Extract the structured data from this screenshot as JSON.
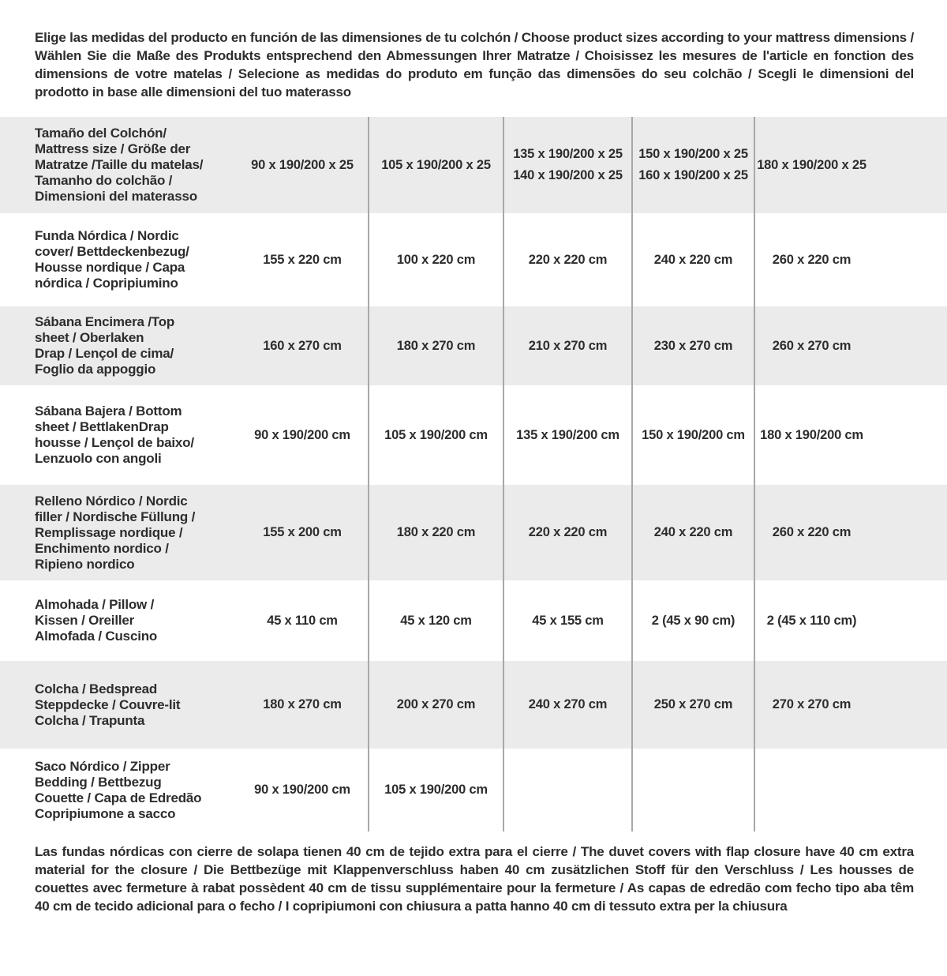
{
  "style": {
    "shaded_row_color": "#ebebeb",
    "divider_color": "#a8a8a8",
    "text_color": "#2d2d2d",
    "background_color": "#ffffff"
  },
  "intro": {
    "text": "Elige las medidas del producto en función de las dimensiones de tu colchón / Choose product sizes according to your mattress dimensions / Wählen Sie die Maße des Produkts entsprechend den Abmessungen Ihrer Matratze / Choisissez les mesures de l'article en fonction des dimensions de votre matelas / Selecione as medidas do produto em função das dimensões do seu colchão / Scegli le dimensioni del prodotto in base alle dimensioni del tuo materasso"
  },
  "table": {
    "rows": [
      {
        "label": "Tamaño del Colchón/\nMattress size / Größe der\nMatratze /Taille du matelas/\nTamanho do colchão /\nDimensioni del materasso",
        "values": [
          "90 x 190/200 x 25",
          "105 x 190/200 x 25",
          "135 x 190/200 x 25\n140 x 190/200 x 25",
          "150 x 190/200 x 25\n160 x 190/200 x 25",
          "180 x 190/200 x 25"
        ]
      },
      {
        "label": "Funda Nórdica /  Nordic\ncover/ Bettdeckenbezug/\nHousse nordique  / Capa\nnórdica / Copripiumino",
        "values": [
          "155 x 220 cm",
          "100 x 220 cm",
          "220 x 220 cm",
          "240 x 220 cm",
          "260 x 220 cm"
        ]
      },
      {
        "label": "Sábana Encimera /Top\nsheet / Oberlaken\nDrap / Lençol de cima/\nFoglio da appoggio",
        "values": [
          "160 x 270 cm",
          "180 x 270 cm",
          "210 x 270 cm",
          "230 x 270 cm",
          "260 x 270 cm"
        ]
      },
      {
        "label": "Sábana Bajera / Bottom\nsheet / BettlakenDrap\nhousse / Lençol de baixo/\nLenzuolo con angoli",
        "values": [
          "90 x 190/200 cm",
          "105 x 190/200 cm",
          "135 x 190/200 cm",
          "150 x 190/200 cm",
          "180 x 190/200 cm"
        ]
      },
      {
        "label": "Relleno Nórdico / Nordic\nfiller / Nordische Füllung /\nRemplissage nordique /\nEnchimento nordico /\nRipieno nordico",
        "values": [
          "155 x 200 cm",
          "180 x 220 cm",
          "220 x 220 cm",
          "240 x 220 cm",
          "260 x 220 cm"
        ]
      },
      {
        "label": "Almohada  / Pillow /\nKissen / Oreiller\nAlmofada / Cuscino",
        "values": [
          "45 x 110 cm",
          "45 x 120 cm",
          "45 x 155 cm",
          "2 (45 x 90 cm)",
          "2 (45 x 110 cm)"
        ]
      },
      {
        "label": "Colcha / Bedspread\nSteppdecke / Couvre-lit\nColcha / Trapunta",
        "values": [
          "180 x 270 cm",
          "200 x 270 cm",
          "240 x 270 cm",
          "250 x 270 cm",
          "270 x 270 cm"
        ]
      },
      {
        "label": "Saco Nórdico / Zipper\nBedding / Bettbezug\nCouette  / Capa de Edredão\nCopripiumone a sacco",
        "values": [
          "90 x 190/200 cm",
          "105 x 190/200 cm",
          "",
          "",
          ""
        ]
      }
    ]
  },
  "footnote": {
    "text": "Las fundas nórdicas con cierre de solapa tienen 40 cm de tejido extra para el cierre  / The duvet covers with flap closure have 40 cm extra material for the closure / Die Bettbezüge mit Klappenverschluss haben 40 cm zusätzlichen Stoff für den Verschluss / Les housses de couettes avec fermeture à rabat possèdent 40 cm de tissu supplémentaire pour la fermeture / As capas de edredão com fecho tipo aba têm 40 cm de tecido adicional para o fecho / I copripiumoni con chiusura a patta hanno 40 cm di tessuto extra per la chiusura"
  }
}
